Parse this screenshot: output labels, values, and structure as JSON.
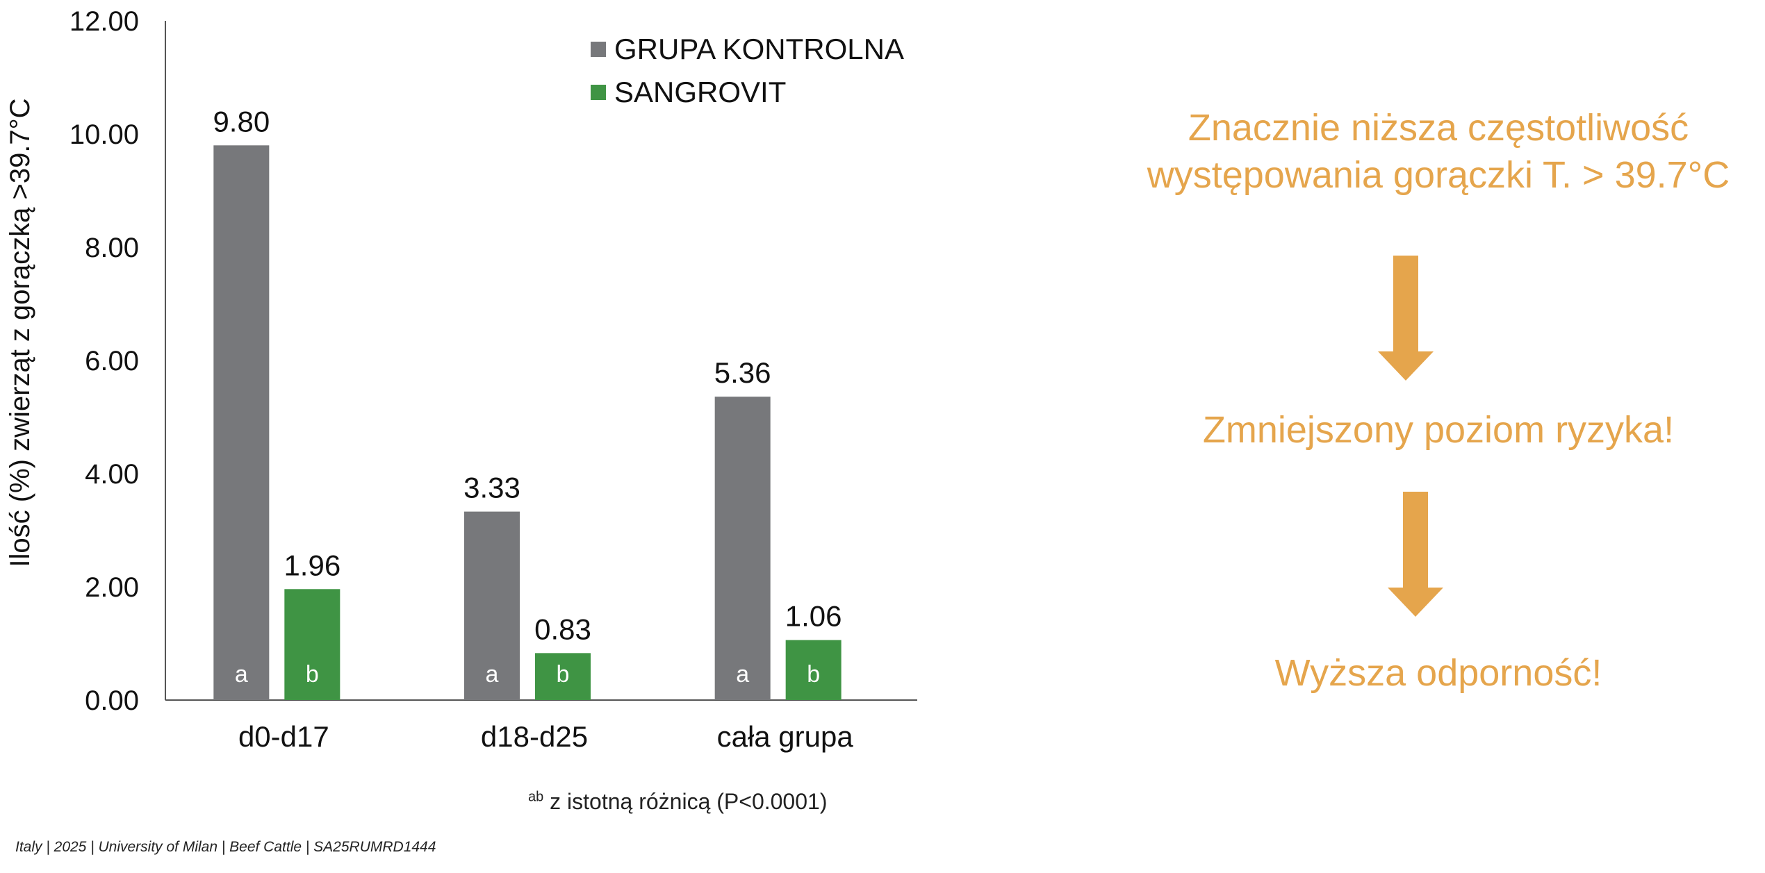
{
  "chart_data": {
    "type": "bar",
    "categories": [
      "d0-d17",
      "d18-d25",
      "cała grupa"
    ],
    "series": [
      {
        "name": "GRUPA KONTROLNA",
        "color": "#77787B",
        "values": [
          9.8,
          3.33,
          5.36
        ],
        "labels": [
          "9.80",
          "3.33",
          "5.36"
        ],
        "sig": [
          "a",
          "a",
          "a"
        ]
      },
      {
        "name": "SANGROVIT",
        "color": "#3F9444",
        "values": [
          1.96,
          0.83,
          1.06
        ],
        "labels": [
          "1.96",
          "0.83",
          "1.06"
        ],
        "sig": [
          "b",
          "b",
          "b"
        ]
      }
    ],
    "ylabel": "Ilość (%) zwierząt z gorączką  >39.7°C",
    "ylim": [
      0,
      12
    ],
    "yticks": [
      "0.00",
      "2.00",
      "4.00",
      "6.00",
      "8.00",
      "10.00",
      "12.00"
    ],
    "legend_position": "top-right",
    "grid": false
  },
  "footnote": {
    "sup": "ab",
    "text": " z istotną różnicą (P<0.0001)"
  },
  "source": "Italy | 2025 | University of Milan | Beef Cattle | SA25RUMRD1444",
  "right_panel": {
    "color": "#E5A54C",
    "line1": "Znacznie niższa częstotliwość",
    "line2": "występowania gorączki T. > 39.7°C",
    "message2": "Zmniejszony poziom ryzyka!",
    "message3": "Wyższa odporność!"
  }
}
